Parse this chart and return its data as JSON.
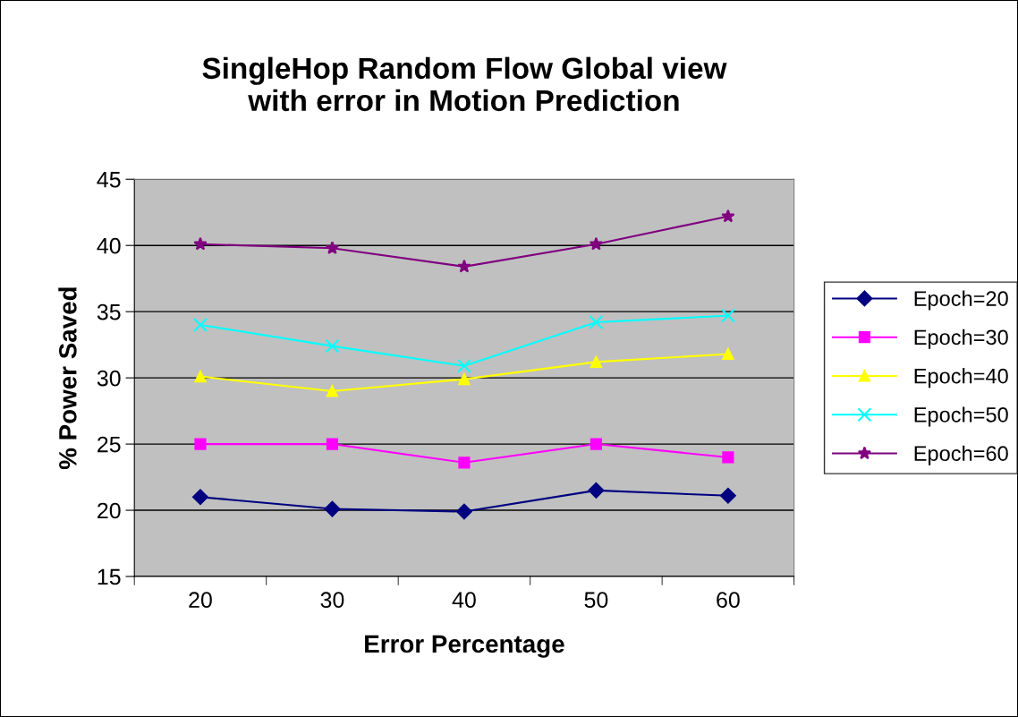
{
  "chart_data": {
    "type": "line",
    "title": "SingleHop Random Flow Global view\nwith error in Motion Prediction",
    "xlabel": "Error Percentage",
    "ylabel": "% Power Saved",
    "categories": [
      "20",
      "30",
      "40",
      "50",
      "60"
    ],
    "series": [
      {
        "name": "Epoch=20",
        "color": "#000080",
        "marker": "diamond",
        "values": [
          21.0,
          20.1,
          19.9,
          21.5,
          21.1
        ]
      },
      {
        "name": "Epoch=30",
        "color": "#ff00ff",
        "marker": "square",
        "values": [
          25.0,
          25.0,
          23.6,
          25.0,
          24.0
        ]
      },
      {
        "name": "Epoch=40",
        "color": "#ffff00",
        "marker": "triangle",
        "values": [
          30.1,
          29.0,
          29.9,
          31.2,
          31.8
        ]
      },
      {
        "name": "Epoch=50",
        "color": "#00ffff",
        "marker": "cross",
        "values": [
          34.0,
          32.4,
          30.9,
          34.2,
          34.7
        ]
      },
      {
        "name": "Epoch=60",
        "color": "#800080",
        "marker": "star",
        "values": [
          40.1,
          39.8,
          38.4,
          40.1,
          42.2
        ]
      }
    ],
    "ylim": [
      15,
      45
    ],
    "yticks": [
      15,
      20,
      25,
      30,
      35,
      40,
      45
    ],
    "grid": "y",
    "legend": "right",
    "line_style": "solid"
  }
}
